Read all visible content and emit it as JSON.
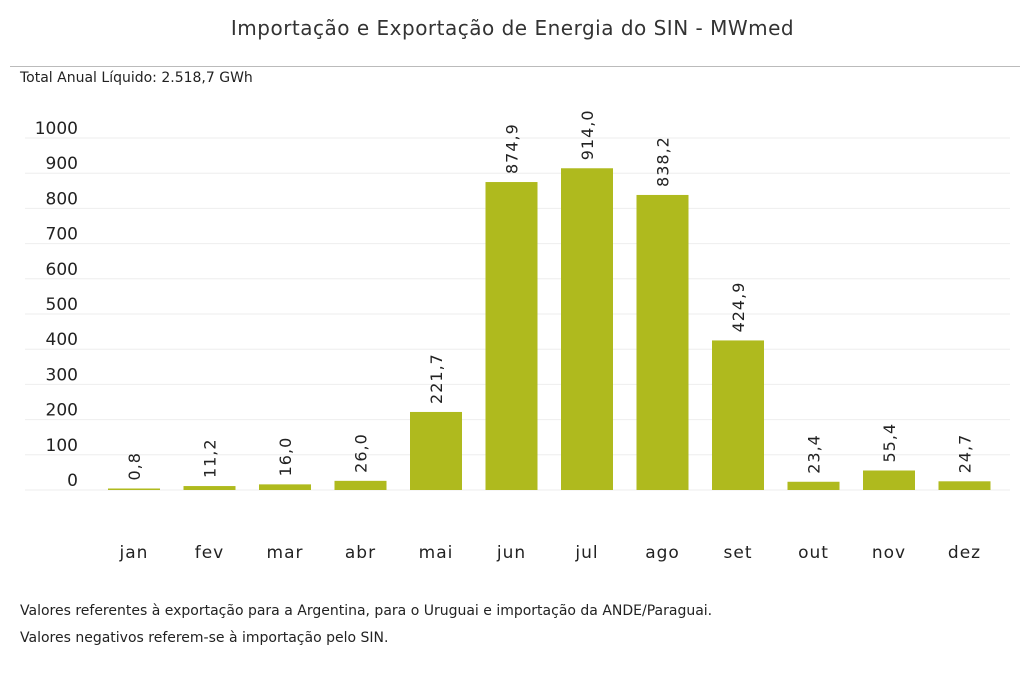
{
  "header": {
    "title": "Importação e Exportação de Energia do SIN - MWmed",
    "total": "Total Anual Líquido: 2.518,7 GWh"
  },
  "footer": {
    "note1": "Valores referentes à exportação para a Argentina, para o Uruguai e importação da ANDE/Paraguai.",
    "note2": "Valores negativos referem-se à importação pelo SIN."
  },
  "colors": {
    "bar": "#afba1e",
    "grid": "#eeeeee",
    "text": "#222222"
  },
  "chart_data": {
    "type": "bar",
    "title": "Importação e Exportação de Energia do SIN - MWmed",
    "xlabel": "",
    "ylabel": "",
    "ylim": [
      0,
      1000
    ],
    "yticks": [
      0,
      100,
      200,
      300,
      400,
      500,
      600,
      700,
      800,
      900,
      1000
    ],
    "grid": true,
    "categories": [
      "jan",
      "fev",
      "mar",
      "abr",
      "mai",
      "jun",
      "jul",
      "ago",
      "set",
      "out",
      "nov",
      "dez"
    ],
    "values": [
      0.8,
      11.2,
      16.0,
      26.0,
      221.7,
      874.9,
      914.0,
      838.2,
      424.9,
      23.4,
      55.4,
      24.7
    ],
    "value_labels": [
      "0,8",
      "11,2",
      "16,0",
      "26,0",
      "221,7",
      "874,9",
      "914,0",
      "838,2",
      "424,9",
      "23,4",
      "55,4",
      "24,7"
    ]
  }
}
